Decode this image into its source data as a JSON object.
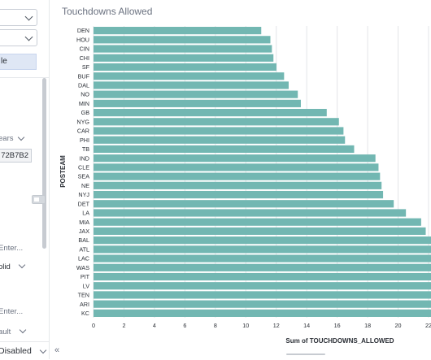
{
  "sidebar": {
    "active_item": "le",
    "fragments": [
      "ears",
      "72B7B2",
      "Enter...",
      "olid",
      "Enter...",
      "ault"
    ],
    "bottom_select": "Disabled",
    "collapse_icon": "double-chevron-left-icon"
  },
  "chart": {
    "title": "Touchdowns Allowed"
  },
  "chart_data": {
    "type": "bar",
    "orientation": "horizontal",
    "title": "Touchdowns Allowed",
    "ylabel": "POSTEAM",
    "xlabel": "Sum of TOUCHDOWNS_ALLOWED",
    "xlim": [
      0,
      22
    ],
    "xticks": [
      "0",
      "2",
      "4",
      "6",
      "8",
      "10",
      "12",
      "14",
      "16",
      "18",
      "20",
      "22"
    ],
    "grid": true,
    "bar_color": "#72B7B2",
    "categories": [
      "DEN",
      "HOU",
      "CIN",
      "CHI",
      "SF",
      "BUF",
      "DAL",
      "NO",
      "MIN",
      "GB",
      "NYG",
      "CAR",
      "PHI",
      "TB",
      "IND",
      "CLE",
      "SEA",
      "NE",
      "NYJ",
      "DET",
      "LA",
      "MIA",
      "JAX",
      "BAL",
      "ATL",
      "LAC",
      "WAS",
      "PIT",
      "LV",
      "TEN",
      "ARI",
      "KC"
    ],
    "values": [
      10.8,
      11.4,
      11.5,
      11.6,
      11.8,
      12.3,
      12.6,
      13.2,
      13.4,
      15.1,
      15.9,
      16.2,
      16.3,
      16.9,
      18.3,
      18.5,
      18.6,
      18.7,
      18.8,
      19.5,
      20.3,
      21.3,
      21.6,
      22,
      22,
      22,
      22,
      22,
      22,
      22,
      22,
      22
    ]
  }
}
